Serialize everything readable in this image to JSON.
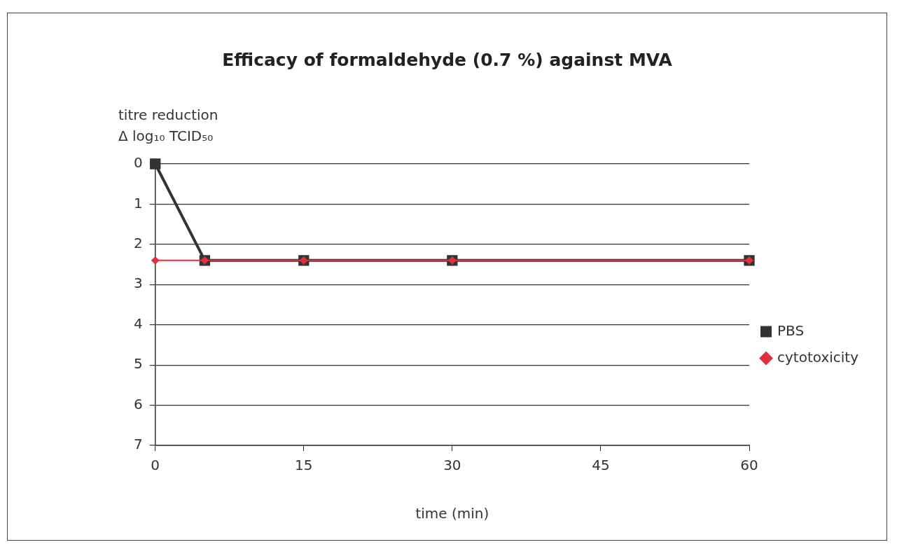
{
  "chart_data": {
    "type": "line",
    "title": "Efficacy of formaldehyde (0.7 %) against MVA",
    "xlabel": "time (min)",
    "ylabel": "titre reduction\nΔ log₁₀ TCID₅₀",
    "x": [
      0,
      5,
      15,
      30,
      60
    ],
    "series": [
      {
        "name": "PBS",
        "color": "#333333",
        "marker": "square",
        "values": [
          0,
          2.4,
          2.4,
          2.4,
          2.4
        ]
      },
      {
        "name": "cytotoxicity",
        "color": "#e0303c",
        "marker": "diamond",
        "values": [
          2.4,
          2.4,
          2.4,
          2.4,
          2.4
        ]
      }
    ],
    "xlim": [
      0,
      60
    ],
    "xticks": [
      0,
      15,
      30,
      45,
      60
    ],
    "ylim": [
      7,
      0
    ],
    "yticks": [
      0,
      1,
      2,
      3,
      4,
      5,
      6,
      7
    ],
    "grid": "y",
    "legend": "right",
    "line_style": "solid"
  }
}
